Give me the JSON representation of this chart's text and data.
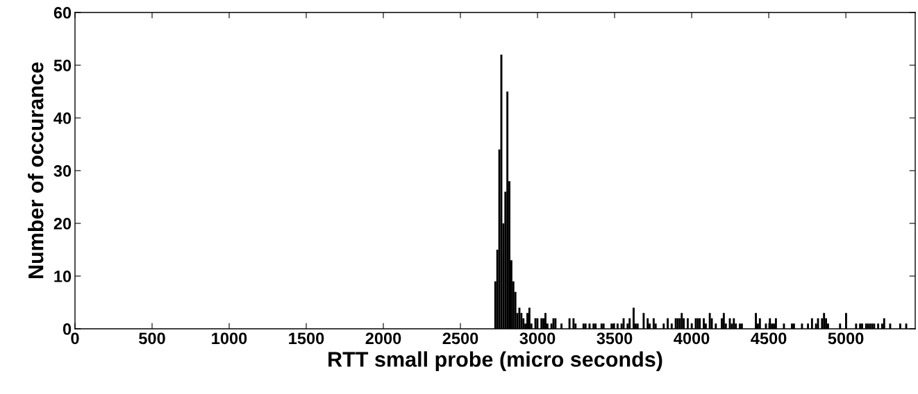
{
  "chart_data": {
    "type": "histogram",
    "xlabel": "RTT small probe (micro seconds)",
    "ylabel": "Number of occurance",
    "color": "#000000",
    "bins": [
      2720,
      2733,
      2746,
      2759,
      2772,
      2785,
      2798,
      2811,
      2824,
      2837,
      2850,
      2863,
      2876,
      2889,
      2902,
      2915,
      2928,
      2941,
      2954,
      2967,
      2980,
      2993,
      3006,
      3019,
      3032,
      3045,
      3058,
      3071,
      3084,
      3097,
      3110,
      3123,
      3136,
      3149,
      3162,
      3175,
      3188,
      3201,
      3214,
      3227,
      3240,
      3253,
      3266,
      3279,
      3292,
      3305,
      3318,
      3331,
      3344,
      3357,
      3370,
      3383,
      3396,
      3409,
      3422,
      3435,
      3448,
      3461,
      3474,
      3487,
      3500,
      3513,
      3526,
      3539,
      3552,
      3565,
      3578,
      3591,
      3604,
      3617,
      3630,
      3643,
      3656,
      3669,
      3682,
      3695,
      3708,
      3721,
      3734,
      3747,
      3760,
      3773,
      3786,
      3799,
      3812,
      3825,
      3838,
      3851,
      3864,
      3877,
      3890,
      3903,
      3916,
      3929,
      3942,
      3955,
      3968,
      3981,
      3994,
      4007,
      4020,
      4033,
      4046,
      4059,
      4072,
      4085,
      4098,
      4111,
      4124,
      4137,
      4150,
      4163,
      4176,
      4189,
      4202,
      4215,
      4228,
      4241,
      4254,
      4267,
      4280,
      4293,
      4306,
      4319,
      4332,
      4345,
      4358,
      4371,
      4384,
      4397,
      4410,
      4423,
      4436,
      4449,
      4462,
      4475,
      4488,
      4501,
      4514,
      4527,
      4540,
      4553,
      4566,
      4579,
      4592,
      4605,
      4618,
      4631,
      4644,
      4657,
      4670,
      4683,
      4696,
      4709,
      4722,
      4735,
      4748,
      4761,
      4774,
      4787,
      4800,
      4813,
      4826,
      4839,
      4852,
      4865,
      4878,
      4891,
      4904,
      4917,
      4930,
      4943,
      4956,
      4969,
      4982,
      4995,
      5008,
      5021,
      5034,
      5047,
      5060,
      5073,
      5086,
      5099,
      5112,
      5125,
      5138,
      5151,
      5164,
      5177,
      5190,
      5203,
      5216,
      5229,
      5242,
      5255,
      5268,
      5281,
      5294,
      5307,
      5320,
      5333,
      5346,
      5359,
      5372,
      5385,
      5398
    ],
    "values": [
      9,
      15,
      34,
      52,
      20,
      26,
      45,
      28,
      13,
      9,
      7,
      3,
      4,
      3,
      2,
      1,
      3,
      4,
      1,
      0,
      2,
      2,
      0,
      2,
      2,
      3,
      1,
      0,
      1,
      2,
      2,
      0,
      0,
      1,
      0,
      0,
      0,
      2,
      0,
      2,
      1,
      0,
      0,
      0,
      1,
      1,
      0,
      1,
      0,
      1,
      1,
      0,
      0,
      1,
      1,
      0,
      0,
      0,
      1,
      1,
      0,
      1,
      0,
      1,
      2,
      0,
      1,
      2,
      0,
      4,
      1,
      1,
      0,
      0,
      3,
      0,
      2,
      1,
      0,
      2,
      1,
      0,
      0,
      0,
      1,
      0,
      2,
      0,
      1,
      0,
      2,
      2,
      2,
      3,
      2,
      0,
      2,
      0,
      1,
      0,
      2,
      2,
      2,
      0,
      2,
      1,
      0,
      3,
      2,
      0,
      1,
      0,
      0,
      2,
      3,
      1,
      0,
      2,
      1,
      2,
      1,
      0,
      1,
      1,
      0,
      0,
      0,
      0,
      0,
      0,
      3,
      1,
      2,
      0,
      0,
      1,
      0,
      2,
      1,
      1,
      2,
      0,
      0,
      0,
      1,
      0,
      0,
      0,
      1,
      1,
      0,
      0,
      0,
      1,
      0,
      0,
      1,
      0,
      2,
      0,
      1,
      2,
      0,
      2,
      3,
      2,
      1,
      0,
      0,
      0,
      0,
      0,
      1,
      0,
      0,
      3,
      0,
      0,
      0,
      0,
      1,
      0,
      1,
      1,
      0,
      1,
      1,
      1,
      1,
      1,
      0,
      1,
      0,
      1,
      2,
      0,
      0,
      1,
      0,
      0,
      0,
      0,
      1,
      0,
      0,
      1
    ],
    "xlim": [
      0,
      5450
    ],
    "ylim": [
      0,
      60
    ],
    "xticks": [
      0,
      500,
      1000,
      1500,
      2000,
      2500,
      3000,
      3500,
      4000,
      4500,
      5000
    ],
    "yticks": [
      0,
      10,
      20,
      30,
      40,
      50,
      60
    ],
    "grid": false,
    "legend": false
  }
}
